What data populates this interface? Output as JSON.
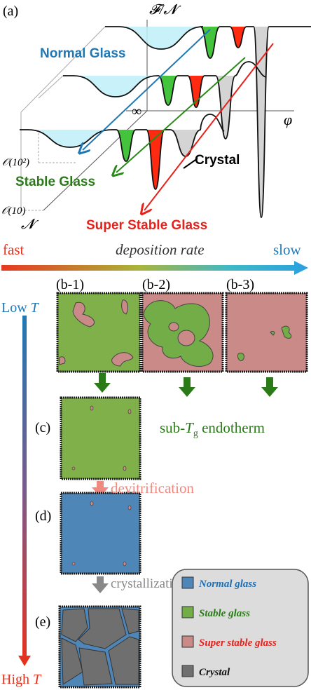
{
  "panel_a": {
    "label": "(a)",
    "y_axis": "𝓕/𝓝",
    "x_axis": "φ",
    "infinity": "∞",
    "tick_upper": "𝒪(10²)",
    "tick_lower": "𝒪(10)",
    "depth_axis": "𝓝",
    "normal_glass": "Normal Glass",
    "stable_glass": "Stable Glass",
    "super_stable_glass": "Super Stable Glass",
    "crystal": "Crystal"
  },
  "rate_arrow": {
    "fast": "fast",
    "label": "deposition rate",
    "slow": "slow"
  },
  "temperature_arrow": {
    "low": {
      "text": "Low ",
      "var": "T"
    },
    "high": {
      "text": "High ",
      "var": "T"
    }
  },
  "panels": {
    "b1": "(b-1)",
    "b2": "(b-2)",
    "b3": "(b-3)",
    "c": "(c)",
    "d": "(d)",
    "e": "(e)"
  },
  "annotations": {
    "endotherm": {
      "prefix": "sub-",
      "var": "T",
      "sub": "g",
      "suffix": " endotherm"
    },
    "devitrification": "devitrification",
    "crystallization": "crystallization"
  },
  "legend": {
    "items": [
      {
        "name": "Normal glass",
        "color": "#4f86b8",
        "text_color": "#1f6fb5"
      },
      {
        "name": "Stable glass",
        "color": "#72ad48",
        "text_color": "#2a7a18"
      },
      {
        "name": "Super stable glass",
        "color": "#c98a88",
        "text_color": "#e8201a"
      },
      {
        "name": "Crystal",
        "color": "#6f6f6f",
        "text_color": "#111111"
      }
    ]
  }
}
